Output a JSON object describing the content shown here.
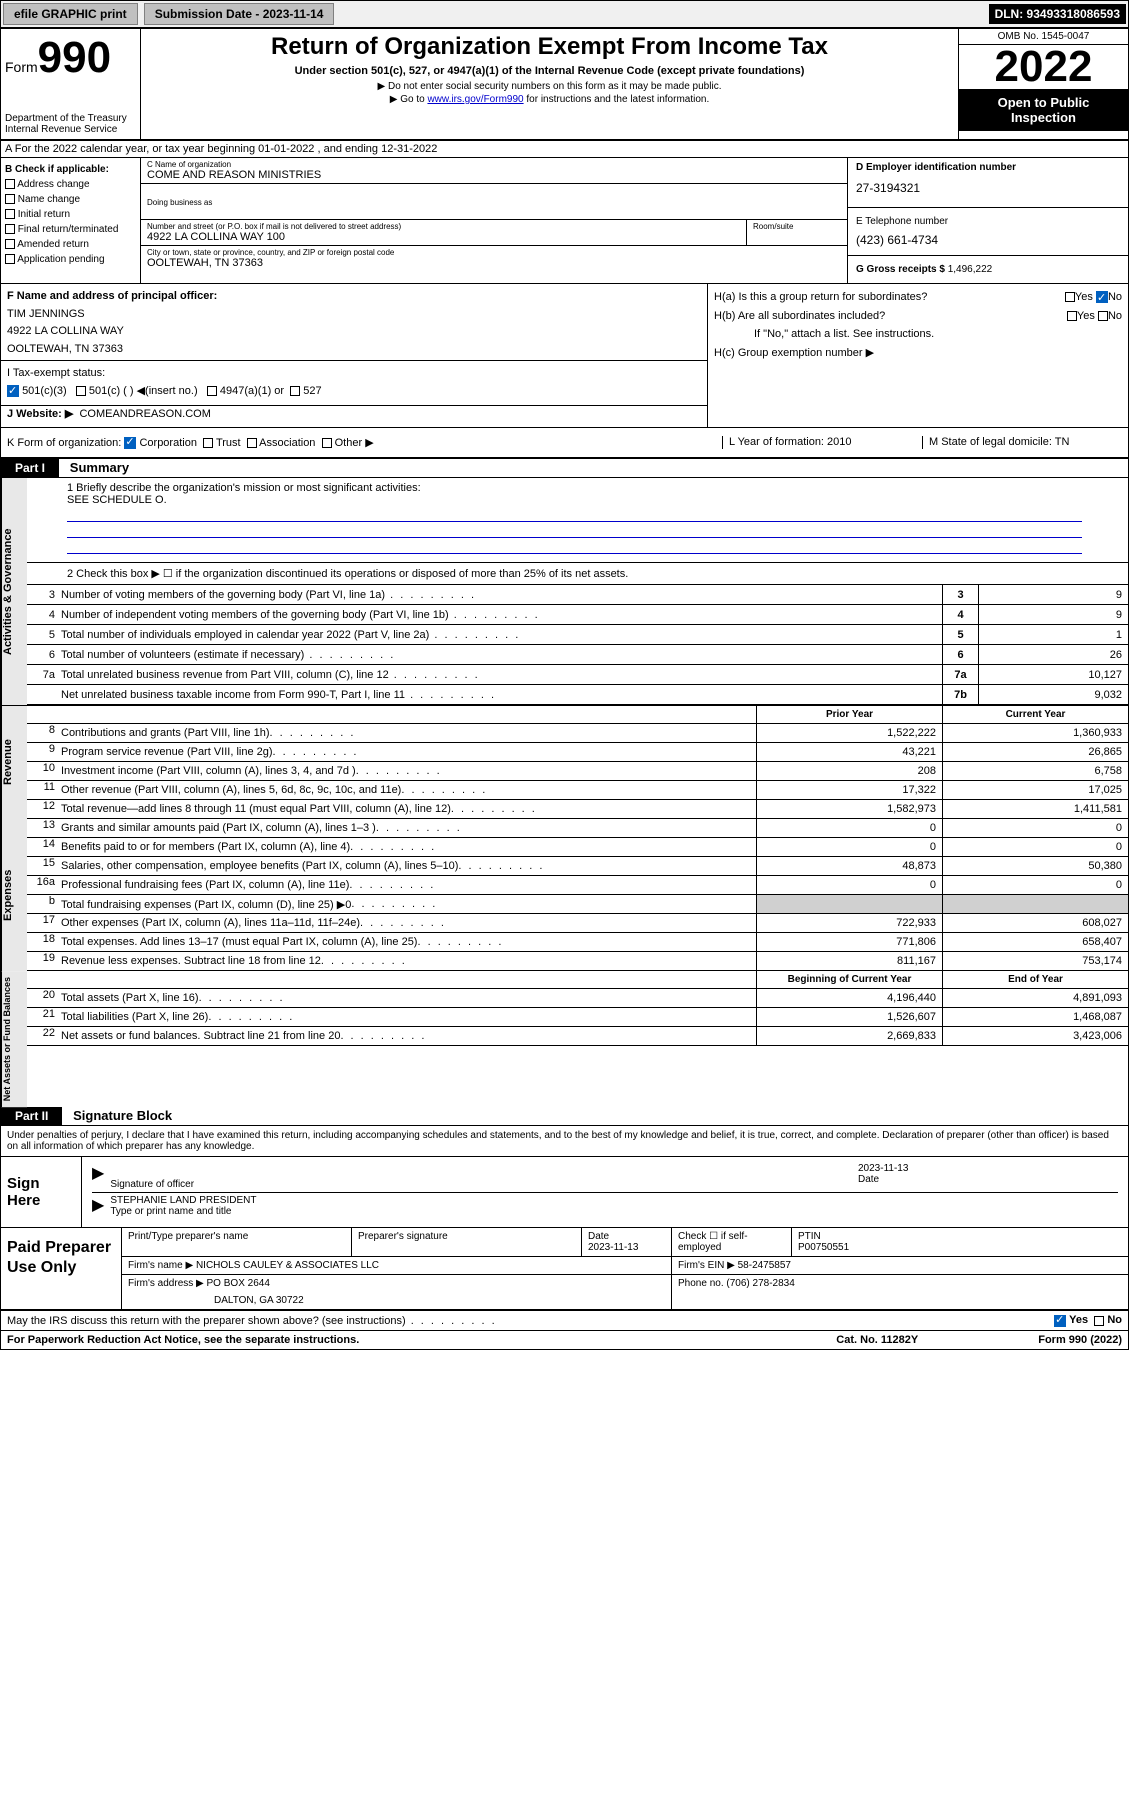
{
  "topbar": {
    "efile": "efile GRAPHIC print",
    "submission_label": "Submission Date - 2023-11-14",
    "dln": "DLN: 93493318086593"
  },
  "header": {
    "form_prefix": "Form",
    "form_number": "990",
    "dept": "Department of the Treasury",
    "irs": "Internal Revenue Service",
    "title": "Return of Organization Exempt From Income Tax",
    "subtitle": "Under section 501(c), 527, or 4947(a)(1) of the Internal Revenue Code (except private foundations)",
    "note1": "▶ Do not enter social security numbers on this form as it may be made public.",
    "note2_pre": "▶ Go to ",
    "note2_link": "www.irs.gov/Form990",
    "note2_post": " for instructions and the latest information.",
    "omb": "OMB No. 1545-0047",
    "tax_year": "2022",
    "open_public": "Open to Public Inspection"
  },
  "row_a": "A For the 2022 calendar year, or tax year beginning 01-01-2022   , and ending 12-31-2022",
  "b": {
    "lead": "B Check if applicable:",
    "opts": [
      "Address change",
      "Name change",
      "Initial return",
      "Final return/terminated",
      "Amended return",
      "Application pending"
    ]
  },
  "c": {
    "name_lbl": "C Name of organization",
    "name": "COME AND REASON MINISTRIES",
    "dba_lbl": "Doing business as",
    "street_lbl": "Number and street (or P.O. box if mail is not delivered to street address)",
    "street": "4922 LA COLLINA WAY 100",
    "room_lbl": "Room/suite",
    "city_lbl": "City or town, state or province, country, and ZIP or foreign postal code",
    "city": "OOLTEWAH, TN  37363"
  },
  "d": {
    "lbl": "D Employer identification number",
    "val": "27-3194321"
  },
  "e": {
    "lbl": "E Telephone number",
    "val": "(423) 661-4734"
  },
  "g": {
    "lbl": "G Gross receipts $",
    "val": "1,496,222"
  },
  "f": {
    "lbl": "F  Name and address of principal officer:",
    "name": "TIM JENNINGS",
    "addr1": "4922 LA COLLINA WAY",
    "addr2": "OOLTEWAH, TN  37363"
  },
  "i": {
    "lbl": "I   Tax-exempt status:",
    "c3": "501(c)(3)",
    "c": "501(c) (  ) ◀(insert no.)",
    "a1": "4947(a)(1) or",
    "s527": "527"
  },
  "j": {
    "lbl": "J    Website: ▶",
    "val": "COMEANDREASON.COM"
  },
  "h": {
    "a": "H(a)  Is this a group return for subordinates?",
    "b": "H(b)  Are all subordinates included?",
    "note": "If \"No,\" attach a list. See instructions.",
    "c": "H(c)  Group exemption number ▶",
    "yes": "Yes",
    "no": "No"
  },
  "k": {
    "lbl": "K Form of organization:",
    "corp": "Corporation",
    "trust": "Trust",
    "assoc": "Association",
    "other": "Other ▶"
  },
  "l": {
    "lbl": "L Year of formation: 2010"
  },
  "m": {
    "lbl": "M State of legal domicile: TN"
  },
  "part1": {
    "hdr": "Part I",
    "title": "Summary"
  },
  "activities": {
    "tab": "Activities & Governance",
    "q1": "1   Briefly describe the organization's mission or most significant activities:",
    "q1v": "SEE SCHEDULE O.",
    "q2": "2    Check this box ▶ ☐  if the organization discontinued its operations or disposed of more than 25% of its net assets.",
    "rows": [
      {
        "n": "3",
        "t": "Number of voting members of the governing body (Part VI, line 1a)",
        "c": "3",
        "v": "9"
      },
      {
        "n": "4",
        "t": "Number of independent voting members of the governing body (Part VI, line 1b)",
        "c": "4",
        "v": "9"
      },
      {
        "n": "5",
        "t": "Total number of individuals employed in calendar year 2022 (Part V, line 2a)",
        "c": "5",
        "v": "1"
      },
      {
        "n": "6",
        "t": "Total number of volunteers (estimate if necessary)",
        "c": "6",
        "v": "26"
      },
      {
        "n": "7a",
        "t": "Total unrelated business revenue from Part VIII, column (C), line 12",
        "c": "7a",
        "v": "10,127"
      },
      {
        "n": "",
        "t": "Net unrelated business taxable income from Form 990-T, Part I, line 11",
        "c": "7b",
        "v": "9,032"
      }
    ]
  },
  "twocol_hdr": {
    "a": "Prior Year",
    "b": "Current Year"
  },
  "revenue": {
    "tab": "Revenue",
    "rows": [
      {
        "n": "8",
        "t": "Contributions and grants (Part VIII, line 1h)",
        "a": "1,522,222",
        "b": "1,360,933"
      },
      {
        "n": "9",
        "t": "Program service revenue (Part VIII, line 2g)",
        "a": "43,221",
        "b": "26,865"
      },
      {
        "n": "10",
        "t": "Investment income (Part VIII, column (A), lines 3, 4, and 7d )",
        "a": "208",
        "b": "6,758"
      },
      {
        "n": "11",
        "t": "Other revenue (Part VIII, column (A), lines 5, 6d, 8c, 9c, 10c, and 11e)",
        "a": "17,322",
        "b": "17,025"
      },
      {
        "n": "12",
        "t": "Total revenue—add lines 8 through 11 (must equal Part VIII, column (A), line 12)",
        "a": "1,582,973",
        "b": "1,411,581"
      }
    ]
  },
  "expenses": {
    "tab": "Expenses",
    "rows": [
      {
        "n": "13",
        "t": "Grants and similar amounts paid (Part IX, column (A), lines 1–3 )",
        "a": "0",
        "b": "0"
      },
      {
        "n": "14",
        "t": "Benefits paid to or for members (Part IX, column (A), line 4)",
        "a": "0",
        "b": "0"
      },
      {
        "n": "15",
        "t": "Salaries, other compensation, employee benefits (Part IX, column (A), lines 5–10)",
        "a": "48,873",
        "b": "50,380"
      },
      {
        "n": "16a",
        "t": "Professional fundraising fees (Part IX, column (A), line 11e)",
        "a": "0",
        "b": "0"
      },
      {
        "n": "b",
        "t": "Total fundraising expenses (Part IX, column (D), line 25) ▶0",
        "a": "",
        "b": ""
      },
      {
        "n": "17",
        "t": "Other expenses (Part IX, column (A), lines 11a–11d, 11f–24e)",
        "a": "722,933",
        "b": "608,027"
      },
      {
        "n": "18",
        "t": "Total expenses. Add lines 13–17 (must equal Part IX, column (A), line 25)",
        "a": "771,806",
        "b": "658,407"
      },
      {
        "n": "19",
        "t": "Revenue less expenses. Subtract line 18 from line 12",
        "a": "811,167",
        "b": "753,174"
      }
    ]
  },
  "netassets_hdr": {
    "a": "Beginning of Current Year",
    "b": "End of Year"
  },
  "netassets": {
    "tab": "Net Assets or Fund Balances",
    "rows": [
      {
        "n": "20",
        "t": "Total assets (Part X, line 16)",
        "a": "4,196,440",
        "b": "4,891,093"
      },
      {
        "n": "21",
        "t": "Total liabilities (Part X, line 26)",
        "a": "1,526,607",
        "b": "1,468,087"
      },
      {
        "n": "22",
        "t": "Net assets or fund balances. Subtract line 21 from line 20",
        "a": "2,669,833",
        "b": "3,423,006"
      }
    ]
  },
  "part2": {
    "hdr": "Part II",
    "title": "Signature Block"
  },
  "sig": {
    "intro": "Under penalties of perjury, I declare that I have examined this return, including accompanying schedules and statements, and to the best of my knowledge and belief, it is true, correct, and complete. Declaration of preparer (other than officer) is based on all information of which preparer has any knowledge.",
    "here": "Sign Here",
    "officer_lbl": "Signature of officer",
    "date_lbl": "Date",
    "date": "2023-11-13",
    "name": "STEPHANIE LAND  PRESIDENT",
    "name_lbl": "Type or print name and title"
  },
  "paid": {
    "title": "Paid Preparer Use Only",
    "h_name": "Print/Type preparer's name",
    "h_sig": "Preparer's signature",
    "h_date": "Date",
    "date": "2023-11-13",
    "h_chk": "Check ☐ if self-employed",
    "h_ptin": "PTIN",
    "ptin": "P00750551",
    "firm_name_lbl": "Firm's name    ▶",
    "firm_name": "NICHOLS CAULEY & ASSOCIATES LLC",
    "firm_ein_lbl": "Firm's EIN ▶",
    "firm_ein": "58-2475857",
    "firm_addr_lbl": "Firm's address ▶",
    "firm_addr1": "PO BOX 2644",
    "firm_addr2": "DALTON, GA  30722",
    "phone_lbl": "Phone no.",
    "phone": "(706) 278-2834"
  },
  "may": {
    "txt": "May the IRS discuss this return with the preparer shown above? (see instructions)",
    "yes": "Yes",
    "no": "No"
  },
  "footer": {
    "left": "For Paperwork Reduction Act Notice, see the separate instructions.",
    "mid": "Cat. No. 11282Y",
    "right": "Form 990 (2022)"
  },
  "colors": {
    "link": "#0000cc",
    "check": "#0060c0",
    "bg_topbar": "#f0f0f0",
    "bg_tab": "#e8e8e8"
  }
}
